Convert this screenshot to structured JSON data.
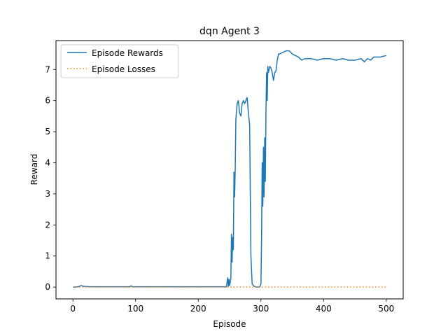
{
  "chart_data": {
    "type": "line",
    "title": "dqn Agent 3",
    "xlabel": "Episode",
    "ylabel": "Reward",
    "xlim": [
      -27,
      527
    ],
    "ylim": [
      -0.38,
      7.93
    ],
    "xticks": [
      0,
      100,
      200,
      300,
      400,
      500
    ],
    "yticks": [
      0,
      1,
      2,
      3,
      4,
      5,
      6,
      7
    ],
    "grid": false,
    "legend_position": "top-left",
    "series": [
      {
        "name": "Episode Rewards",
        "color": "#1f77b4",
        "style": "solid",
        "x": [
          0,
          5,
          10,
          13,
          16,
          20,
          30,
          60,
          90,
          93,
          95,
          100,
          150,
          200,
          245,
          247,
          248,
          249,
          250,
          251,
          252,
          253,
          254,
          255,
          256,
          257,
          258,
          259,
          260,
          262,
          264,
          266,
          268,
          270,
          272,
          274,
          276,
          278,
          280,
          282,
          284,
          286,
          288,
          290,
          292,
          295,
          298,
          300,
          301,
          302,
          303,
          304,
          305,
          306,
          307,
          308,
          309,
          310,
          311,
          312,
          314,
          316,
          318,
          320,
          322,
          324,
          326,
          328,
          330,
          335,
          340,
          345,
          350,
          355,
          360,
          365,
          370,
          380,
          390,
          400,
          410,
          420,
          430,
          440,
          450,
          460,
          465,
          470,
          475,
          480,
          490,
          500
        ],
        "y": [
          0.0,
          0.0,
          0.02,
          0.05,
          0.03,
          0.02,
          0.01,
          0.01,
          0.01,
          0.04,
          0.01,
          0.01,
          0.01,
          0.01,
          0.01,
          0.3,
          0.02,
          0.25,
          0.05,
          0.15,
          0.3,
          1.7,
          0.8,
          1.6,
          1.2,
          3.7,
          2.9,
          3.8,
          5.4,
          5.9,
          6.0,
          5.6,
          5.5,
          5.9,
          6.0,
          5.9,
          6.0,
          6.1,
          5.6,
          5.2,
          1.0,
          0.1,
          0.05,
          0.02,
          0.0,
          0.0,
          0.0,
          0.1,
          1.5,
          4.0,
          2.6,
          4.5,
          2.9,
          4.8,
          3.4,
          5.6,
          6.9,
          6.0,
          7.1,
          6.9,
          7.1,
          7.05,
          6.9,
          6.65,
          6.9,
          6.95,
          7.3,
          7.5,
          7.5,
          7.55,
          7.6,
          7.6,
          7.5,
          7.45,
          7.4,
          7.3,
          7.35,
          7.35,
          7.3,
          7.35,
          7.35,
          7.3,
          7.35,
          7.3,
          7.3,
          7.35,
          7.25,
          7.35,
          7.3,
          7.4,
          7.4,
          7.45
        ]
      },
      {
        "name": "Episode Losses",
        "color": "#ff7f0e",
        "style": "dotted",
        "x": [
          0,
          500
        ],
        "y": [
          0.0,
          0.0
        ]
      }
    ]
  }
}
